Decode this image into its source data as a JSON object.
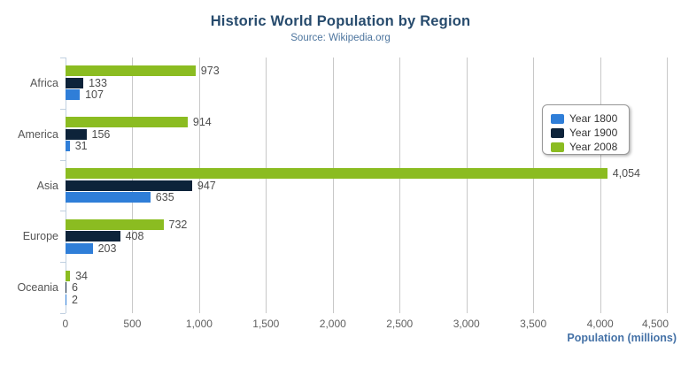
{
  "header": {
    "title": "Historic World Population by Region",
    "subtitle": "Source: Wikipedia.org"
  },
  "chart_data": {
    "type": "bar",
    "orientation": "horizontal",
    "title": "Historic World Population by Region",
    "subtitle": "Source: Wikipedia.org",
    "categories": [
      "Africa",
      "America",
      "Asia",
      "Europe",
      "Oceania"
    ],
    "series": [
      {
        "name": "Year 1800",
        "color": "#2f7ed8",
        "values": [
          107,
          31,
          635,
          203,
          2
        ],
        "labels": [
          "107",
          "31",
          "635",
          "203",
          "2"
        ]
      },
      {
        "name": "Year 1900",
        "color": "#0d233a",
        "values": [
          133,
          156,
          947,
          408,
          6
        ],
        "labels": [
          "133",
          "156",
          "947",
          "408",
          "6"
        ]
      },
      {
        "name": "Year 2008",
        "color": "#8bbc21",
        "values": [
          973,
          914,
          4054,
          732,
          34
        ],
        "labels": [
          "973",
          "914",
          "4,054",
          "732",
          "34"
        ]
      }
    ],
    "bar_display_order_top_to_bottom": [
      2,
      1,
      0
    ],
    "xlabel": "Population (millions)",
    "xlim": [
      0,
      4500
    ],
    "xticks": [
      0,
      500,
      1000,
      1500,
      2000,
      2500,
      3000,
      3500,
      4000,
      4500
    ],
    "xtick_labels": [
      "0",
      "500",
      "1,000",
      "1,500",
      "2,000",
      "2,500",
      "3,000",
      "3,500",
      "4,000",
      "4,500"
    ],
    "grid": true,
    "data_labels": true,
    "legend": {
      "position": "inside-right-top",
      "items": [
        "Year 1800",
        "Year 1900",
        "Year 2008"
      ]
    }
  },
  "colors": {
    "title": "#274b6d",
    "subtitle": "#4d759e",
    "axis_title": "#4572a7",
    "grid": "#c8c8c8",
    "axis_line": "#c0d0e0",
    "menu_icon": "#666666"
  }
}
